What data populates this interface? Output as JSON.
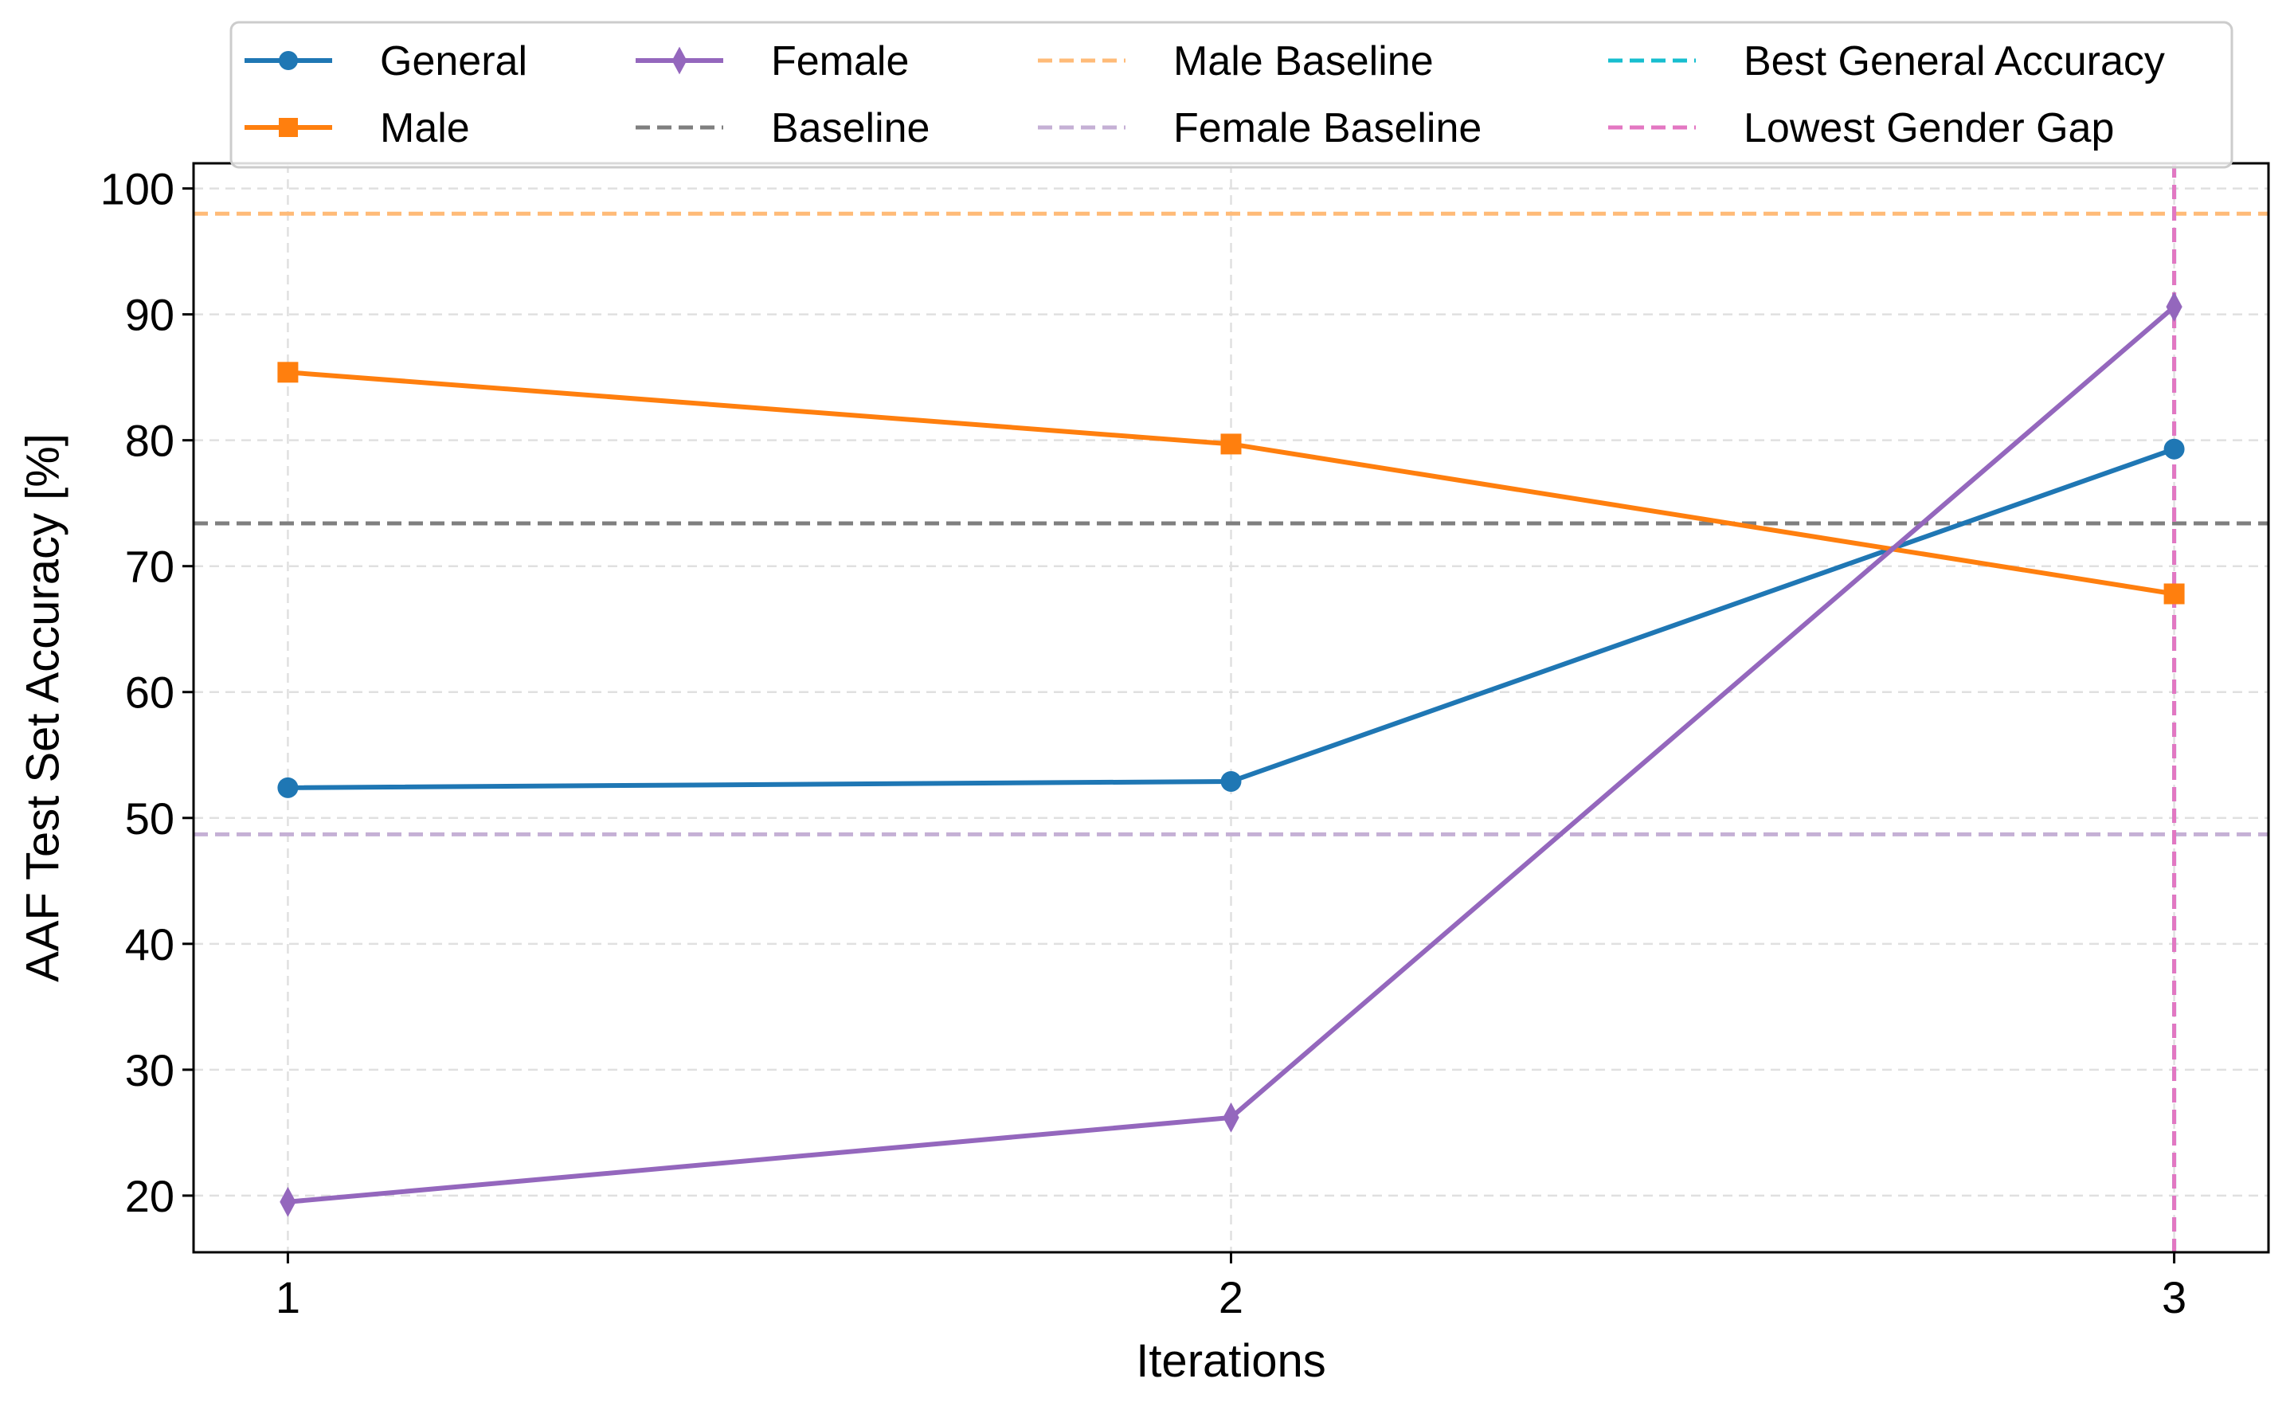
{
  "chart_data": {
    "type": "line",
    "title": "",
    "xlabel": "Iterations",
    "ylabel": "AAF Test Set Accuracy [%]",
    "x": [
      1,
      2,
      3
    ],
    "xticks": [
      "1",
      "2",
      "3"
    ],
    "xlim": [
      0.9,
      3.1
    ],
    "ylim": [
      15.5,
      102
    ],
    "yticks": [
      20,
      30,
      40,
      50,
      60,
      70,
      80,
      90,
      100
    ],
    "grid": true,
    "legend_placement": "top-center",
    "series": [
      {
        "name": "General",
        "values": [
          52.4,
          52.9,
          79.3
        ],
        "color": "#1f77b4",
        "marker": "circle"
      },
      {
        "name": "Male",
        "values": [
          85.4,
          79.7,
          67.8
        ],
        "color": "#ff7f0e",
        "marker": "square"
      },
      {
        "name": "Female",
        "values": [
          19.5,
          26.2,
          90.6
        ],
        "color": "#9467bd",
        "marker": "diamond"
      }
    ],
    "reference_lines": [
      {
        "name": "Baseline",
        "orientation": "horizontal",
        "value": 73.4,
        "color": "#7f7f7f"
      },
      {
        "name": "Male Baseline",
        "orientation": "horizontal",
        "value": 98.0,
        "color": "#ffbb78"
      },
      {
        "name": "Female Baseline",
        "orientation": "horizontal",
        "value": 48.7,
        "color": "#c5b0d5"
      },
      {
        "name": "Best General Accuracy",
        "orientation": "vertical",
        "value": 3,
        "color": "#17becf"
      },
      {
        "name": "Lowest Gender Gap",
        "orientation": "vertical",
        "value": 3,
        "color": "#e377c2"
      }
    ],
    "legend_order": [
      "General",
      "Male",
      "Female",
      "Baseline",
      "Male Baseline",
      "Female Baseline",
      "Best General Accuracy",
      "Lowest Gender Gap"
    ]
  }
}
